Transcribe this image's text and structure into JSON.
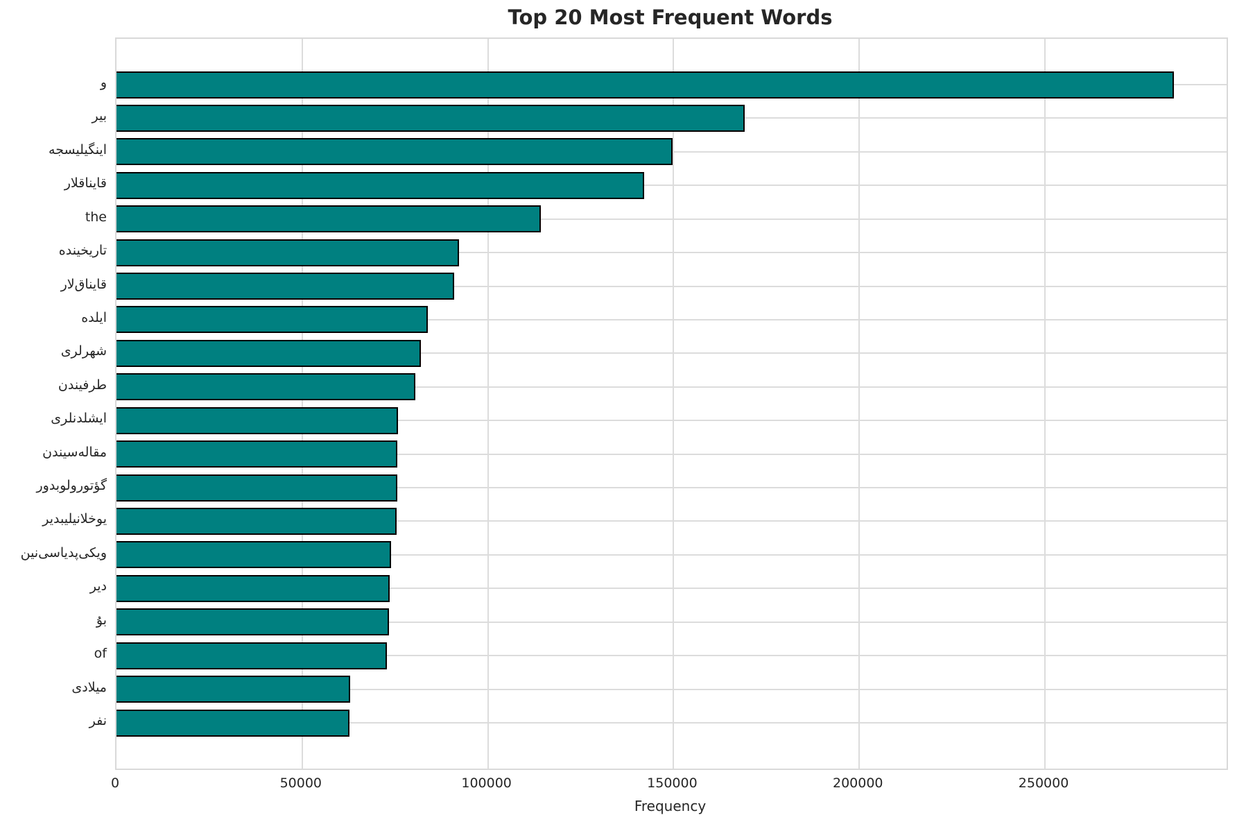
{
  "chart_data": {
    "type": "bar",
    "orientation": "horizontal",
    "title": "Top 20 Most Frequent Words",
    "xlabel": "Frequency",
    "ylabel": "",
    "categories": [
      "و",
      "بیر",
      "اینگیلیسجه",
      "قایناقلار",
      "the",
      "تاریخینده",
      "قایناق‌لار",
      "ایلده",
      "شهرلری",
      "طرفیندن",
      "ایشلدنلری",
      "مقاله‌سیندن",
      "گؤتورولوبدور",
      "یوخلانیلیبدیر",
      "ویکی‌پدیاسی‌نین",
      "دیر",
      "بۇ",
      "of",
      "میلادی",
      "نفر"
    ],
    "values": [
      284700,
      169200,
      149800,
      142000,
      114200,
      92200,
      91000,
      83800,
      81900,
      80400,
      75800,
      75700,
      75600,
      75500,
      73900,
      73600,
      73300,
      72800,
      62900,
      62700
    ],
    "xticks": [
      0,
      50000,
      100000,
      150000,
      200000,
      250000
    ],
    "xtick_labels": [
      "0",
      "50000",
      "100000",
      "150000",
      "200000",
      "250000"
    ],
    "xlim": [
      0,
      298900
    ],
    "grid": true,
    "bar_color": "#008080",
    "bar_edge_color": "#000000",
    "grid_color": "#dcdcdc",
    "text_color": "#262626"
  }
}
